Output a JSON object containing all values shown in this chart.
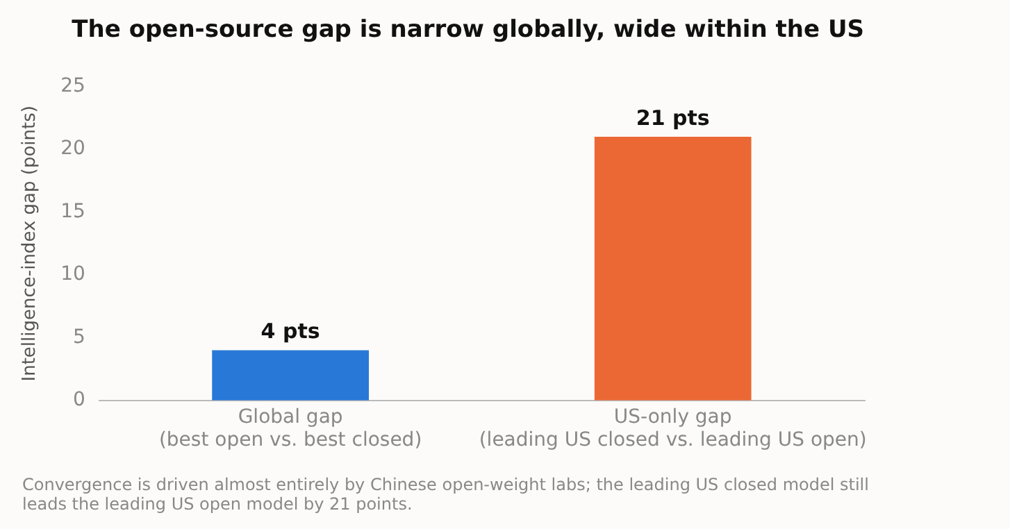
{
  "chart_data": {
    "type": "bar",
    "title": "The open-source gap is narrow globally, wide within the US",
    "ylabel": "Intelligence-index gap (points)",
    "categories": [
      "Global gap\n(best open vs. best closed)",
      "US-only gap\n(leading US closed vs. leading US open)"
    ],
    "values": [
      4,
      21
    ],
    "colors": [
      "#2878d8",
      "#eb6834"
    ],
    "value_labels": [
      "4 pts",
      "21 pts"
    ],
    "ylim": [
      0,
      25
    ],
    "yticks": [
      0,
      5,
      10,
      15,
      20,
      25
    ],
    "grid": false,
    "legend": false,
    "annotations": [
      "Convergence is driven almost entirely by Chinese open-weight labs; the leading US closed model still leads the leading US open model by 21 points."
    ]
  }
}
